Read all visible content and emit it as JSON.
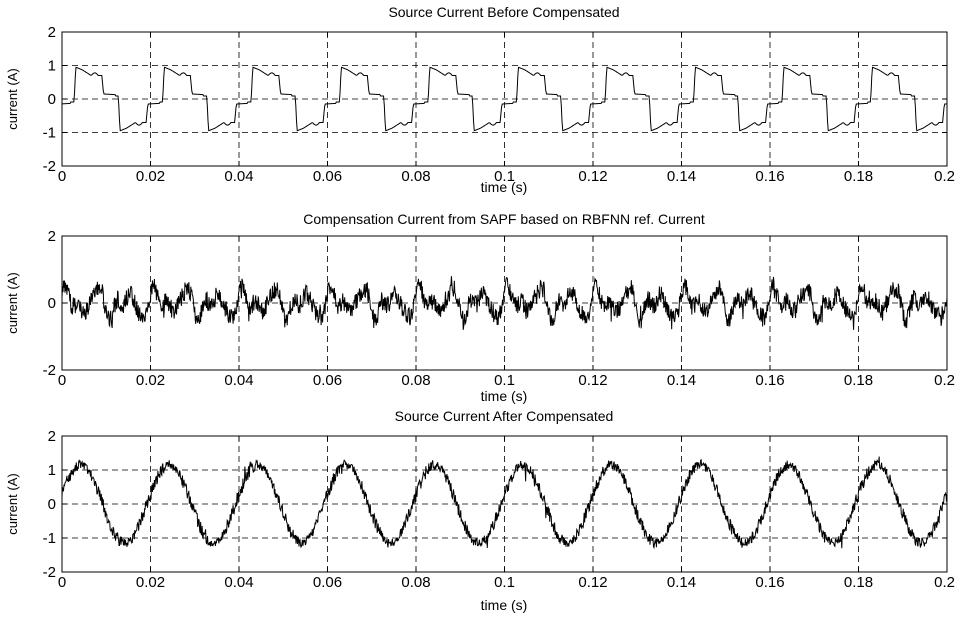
{
  "chart_data": [
    {
      "type": "line",
      "title": "Source Current Before Compensated",
      "xlabel": "time (s)",
      "ylabel": "current (A)",
      "xlim": [
        0,
        0.2
      ],
      "ylim": [
        -2,
        2
      ],
      "x_ticks": [
        "0",
        "0.02",
        "0.04",
        "0.06",
        "0.08",
        "0.1",
        "0.12",
        "0.14",
        "0.16",
        "0.18",
        "0.2"
      ],
      "y_ticks": [
        "2",
        "1",
        "0",
        "-1",
        "-2"
      ],
      "grid": true,
      "signal": {
        "waveform": "quasi-square (rectified-bridge load current)",
        "fundamental_hz": 50,
        "peak_amplitude": 0.95,
        "flat_top_level": 0.7,
        "zero_dwell_level": 0.15
      }
    },
    {
      "type": "line",
      "title": "Compensation Current from SAPF based on RBFNN ref. Current",
      "xlabel": "time (s)",
      "ylabel": "current (A)",
      "xlim": [
        0,
        0.2
      ],
      "ylim": [
        -2,
        2
      ],
      "x_ticks": [
        "0",
        "0.02",
        "0.04",
        "0.06",
        "0.08",
        "0.1",
        "0.12",
        "0.14",
        "0.16",
        "0.18",
        "0.2"
      ],
      "y_ticks": [
        "2",
        "0",
        "-2"
      ],
      "grid": true,
      "signal": {
        "waveform": "noisy harmonic compensation current",
        "fundamental_hz": 50,
        "peak_amplitude": 0.8,
        "typical_range": [
          -0.8,
          0.8
        ]
      }
    },
    {
      "type": "line",
      "title": "Source Current After Compensated",
      "xlabel": "time (s)",
      "ylabel": "current (A)",
      "xlim": [
        0,
        0.2
      ],
      "ylim": [
        -2,
        2
      ],
      "x_ticks": [
        "0",
        "0.02",
        "0.04",
        "0.06",
        "0.08",
        "0.1",
        "0.12",
        "0.14",
        "0.16",
        "0.18",
        "0.2"
      ],
      "y_ticks": [
        "2",
        "1",
        "0",
        "-1",
        "-2"
      ],
      "grid": true,
      "signal": {
        "waveform": "sinusoid with switching ripple",
        "fundamental_hz": 50,
        "peak_amplitude": 1.15,
        "ripple_amplitude": 0.2,
        "max_spike": 1.5
      }
    }
  ]
}
